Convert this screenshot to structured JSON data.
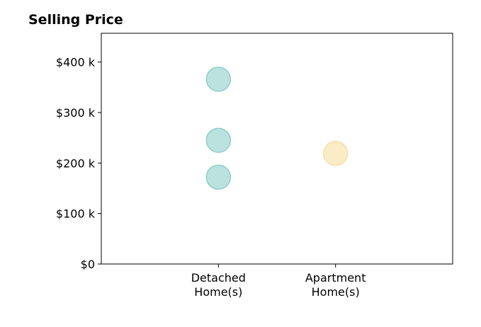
{
  "chart_data": {
    "type": "scatter",
    "title": "Selling Price",
    "xlim": [
      0,
      3
    ],
    "xticks": [
      {
        "value": 1,
        "label": "Detached\nHome(s)"
      },
      {
        "value": 2,
        "label": "Apartment\nHome(s)"
      }
    ],
    "ylim": [
      0,
      457000
    ],
    "yticks": [
      {
        "value": 0,
        "label": "$0"
      },
      {
        "value": 100000,
        "label": "$100 k"
      },
      {
        "value": 200000,
        "label": "$200 k"
      },
      {
        "value": 300000,
        "label": "$300 k"
      },
      {
        "value": 400000,
        "label": "$400 k"
      }
    ],
    "series": [
      {
        "color": "#8ecfc9",
        "x": [
          1,
          1,
          1
        ],
        "values": [
          366000,
          245000,
          172000
        ]
      },
      {
        "color": "#f8dfa4",
        "x": [
          2
        ],
        "values": [
          219000
        ]
      }
    ]
  }
}
